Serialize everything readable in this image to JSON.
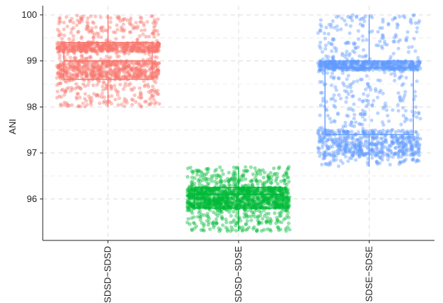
{
  "chart_data": {
    "type": "scatter",
    "subtype": "jitter-with-boxplot",
    "title": "",
    "xlabel": "",
    "ylabel": "ANI",
    "ylim": [
      95.1,
      100.2
    ],
    "yticks": [
      96,
      97,
      98,
      99,
      100
    ],
    "categories": [
      "SDSD−SDSD",
      "SDSD−SDSE",
      "SDSE−SDSE"
    ],
    "grid": true,
    "legend": "none",
    "series": [
      {
        "category": "SDSD−SDSD",
        "color": "#F8766D",
        "distribution": {
          "range": [
            98.0,
            100.0
          ],
          "dense_bands": [
            [
              98.6,
              99.0
            ],
            [
              99.2,
              99.4
            ]
          ]
        },
        "box": {
          "whisker_low": 98.0,
          "q1": 98.6,
          "median": 99.0,
          "q3": 99.4,
          "whisker_high": 100.0
        }
      },
      {
        "category": "SDSD−SDSE",
        "color": "#00BA38",
        "distribution": {
          "range": [
            95.3,
            96.7
          ],
          "dense_bands": [
            [
              95.8,
              96.25
            ]
          ]
        },
        "box": {
          "whisker_low": 95.3,
          "q1": 95.8,
          "median": 96.1,
          "q3": 96.25,
          "whisker_high": 96.7
        }
      },
      {
        "category": "SDSE−SDSE",
        "color": "#619CFF",
        "distribution": {
          "range": [
            96.7,
            100.0
          ],
          "dense_bands": [
            [
              96.9,
              97.5
            ],
            [
              98.8,
              99.0
            ]
          ]
        },
        "box": {
          "whisker_low": 96.7,
          "q1": 97.4,
          "median": 98.85,
          "q3": 99.0,
          "whisker_high": 100.0
        }
      }
    ]
  }
}
